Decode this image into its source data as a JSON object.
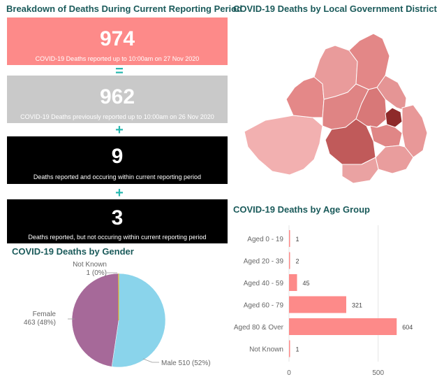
{
  "summary": {
    "title": "Breakdown of Deaths During Current Reporting Period",
    "cards": [
      {
        "value": "974",
        "caption": "COVID-19 Deaths reported up to 10:00am on 27 Nov 2020",
        "color": "#fd8a89"
      },
      {
        "value": "962",
        "caption": "COVID-19 Deaths previously reported up to 10:00am on 26 Nov 2020",
        "color": "#c9c9c9"
      },
      {
        "value": "9",
        "caption": "Deaths reported and occuring within current reporting period",
        "color": "#000000"
      },
      {
        "value": "3",
        "caption": "Deaths reported, but not occuring within current reporting period",
        "color": "#000000"
      }
    ],
    "operators": [
      "=",
      "+",
      "+"
    ]
  },
  "map": {
    "title": "COVID-19 Deaths by Local Government District"
  },
  "chart_data": [
    {
      "type": "pie",
      "title": "COVID-19 Deaths by Gender",
      "categories": [
        "Male",
        "Female",
        "Not Known"
      ],
      "values": [
        510,
        463,
        1
      ],
      "labels": [
        "Male 510 (52%)",
        "Female 463 (48%)",
        "Not Known 1 (0%)"
      ],
      "colors": [
        "#8ad4eb",
        "#a66999",
        "#f2c80f"
      ]
    },
    {
      "type": "bar",
      "orientation": "horizontal",
      "title": "COVID-19 Deaths by Age Group",
      "categories": [
        "Aged 0 - 19",
        "Aged 20 - 39",
        "Aged 40 - 59",
        "Aged 60 - 79",
        "Aged 80 & Over",
        "Not Known"
      ],
      "values": [
        1,
        2,
        45,
        321,
        604,
        1
      ],
      "xlim": [
        0,
        650
      ],
      "xticks": [
        0,
        500
      ],
      "color": "#fd8a89"
    }
  ]
}
